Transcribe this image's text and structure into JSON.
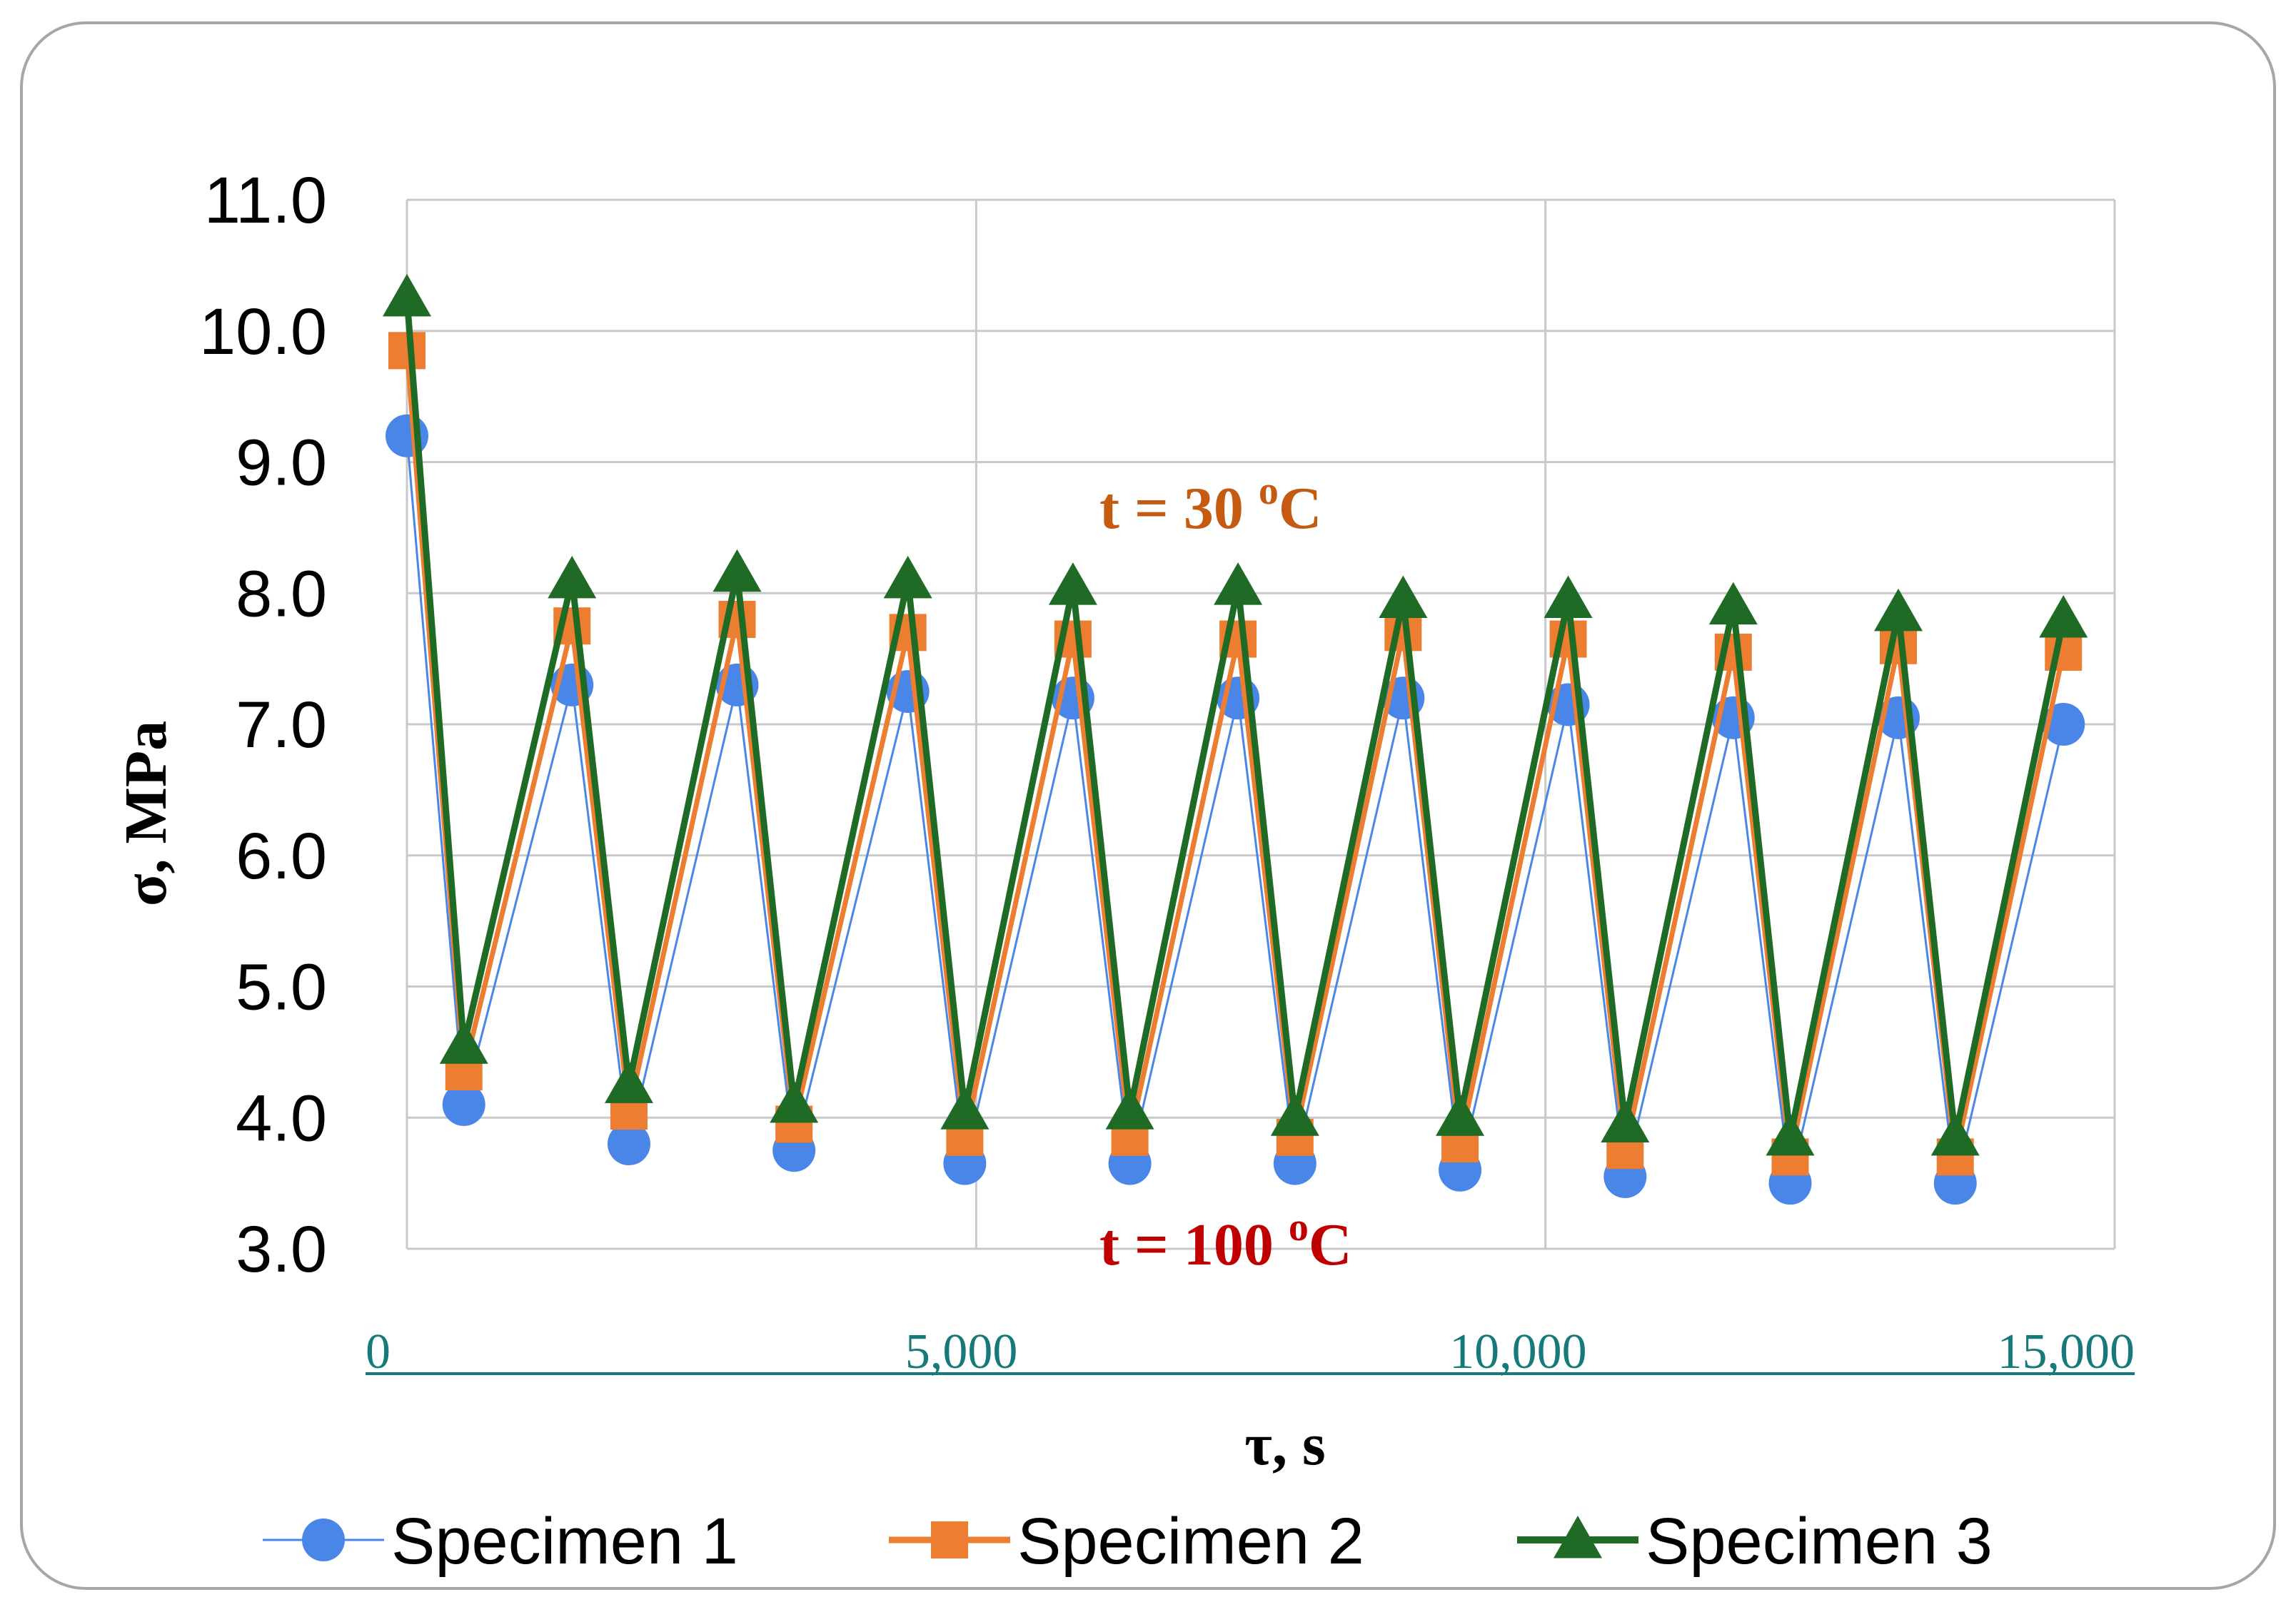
{
  "chart_data": {
    "type": "line",
    "title": "",
    "xlabel": "τ, s",
    "ylabel": "σ, MPa",
    "xlim": [
      0,
      15000
    ],
    "ylim": [
      3.0,
      11.0
    ],
    "x_ticks": [
      "0",
      "5,000",
      "10,000",
      "15,000"
    ],
    "y_ticks": [
      "3.0",
      "4.0",
      "5.0",
      "6.0",
      "7.0",
      "8.0",
      "9.0",
      "10.0",
      "11.0"
    ],
    "grid": true,
    "legend_position": "bottom",
    "annotations": [
      {
        "text": "t = 30 ",
        "sup": "o",
        "unit": "C",
        "color": "#c55a11"
      },
      {
        "text": "t = 100 ",
        "sup": "o",
        "unit": "C",
        "color": "#c00000"
      }
    ],
    "series": [
      {
        "name": "Specimen 1",
        "color": "#4a86e8",
        "marker": "circle",
        "x": [
          0,
          500,
          1450,
          1950,
          2900,
          3400,
          4400,
          4900,
          5850,
          6350,
          7300,
          7800,
          8750,
          9250,
          10200,
          10700,
          11650,
          12150,
          13100,
          13600,
          14550
        ],
        "y": [
          9.2,
          4.1,
          7.3,
          3.8,
          7.3,
          3.75,
          7.25,
          3.65,
          7.2,
          3.65,
          7.2,
          3.65,
          7.2,
          3.6,
          7.15,
          3.55,
          7.05,
          3.5,
          7.05,
          3.5,
          7.0
        ]
      },
      {
        "name": "Specimen 2",
        "color": "#ed7d31",
        "marker": "square",
        "x": [
          0,
          500,
          1450,
          1950,
          2900,
          3400,
          4400,
          4900,
          5850,
          6350,
          7300,
          7800,
          8750,
          9250,
          10200,
          10700,
          11650,
          12150,
          13100,
          13600,
          14550
        ],
        "y": [
          9.85,
          4.35,
          7.75,
          4.05,
          7.8,
          3.95,
          7.7,
          3.85,
          7.65,
          3.85,
          7.65,
          3.85,
          7.7,
          3.8,
          7.65,
          3.75,
          7.55,
          3.7,
          7.6,
          3.7,
          7.55
        ]
      },
      {
        "name": "Specimen 3",
        "color": "#1f6b26",
        "marker": "triangle",
        "x": [
          0,
          500,
          1450,
          1950,
          2900,
          3400,
          4400,
          4900,
          5850,
          6350,
          7300,
          7800,
          8750,
          9250,
          10200,
          10700,
          11650,
          12150,
          13100,
          13600,
          14550
        ],
        "y": [
          10.25,
          4.55,
          8.1,
          4.25,
          8.15,
          4.1,
          8.1,
          4.05,
          8.05,
          4.05,
          8.05,
          4.0,
          7.95,
          4.0,
          7.95,
          3.95,
          7.9,
          3.85,
          7.85,
          3.85,
          7.8
        ]
      }
    ]
  }
}
